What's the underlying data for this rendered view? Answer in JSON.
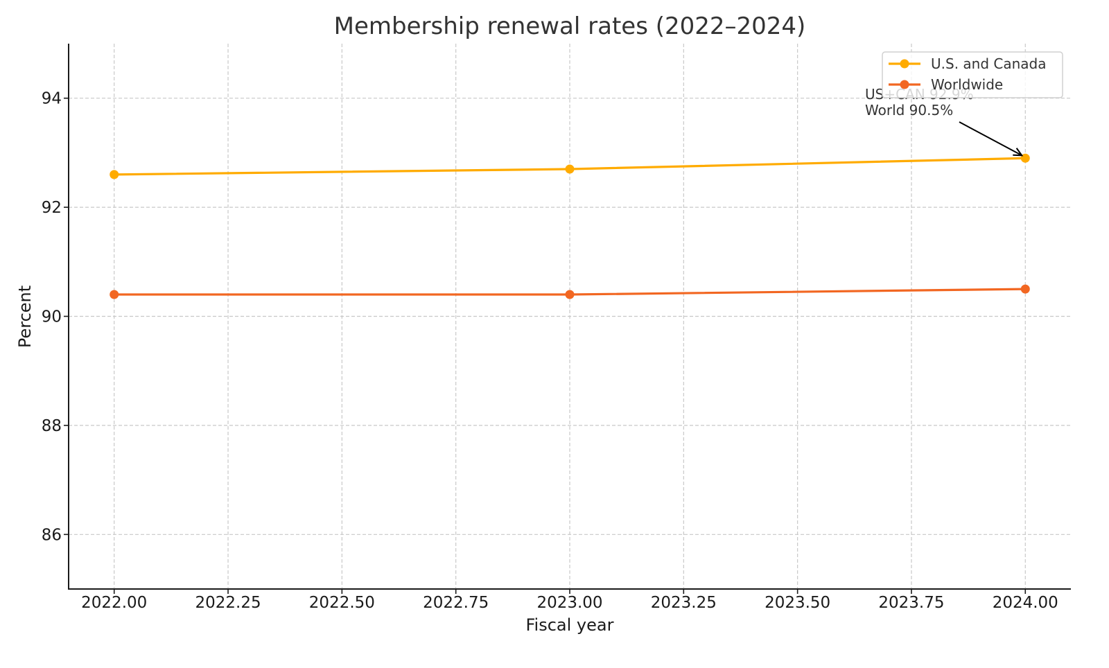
{
  "chart_data": {
    "type": "line",
    "title": "Membership renewal rates (2022–2024)",
    "xlabel": "Fiscal year",
    "ylabel": "Percent",
    "x": [
      2022,
      2023,
      2024
    ],
    "series": [
      {
        "name": "U.S. and Canada",
        "values": [
          92.6,
          92.7,
          92.9
        ],
        "color": "#FFAB00"
      },
      {
        "name": "Worldwide",
        "values": [
          90.4,
          90.4,
          90.5
        ],
        "color": "#F26722"
      }
    ],
    "xlim": [
      2021.9,
      2024.1
    ],
    "ylim": [
      85.0,
      95.0
    ],
    "x_ticks": [
      2022.0,
      2022.25,
      2022.5,
      2022.75,
      2023.0,
      2023.25,
      2023.5,
      2023.75,
      2024.0
    ],
    "x_tick_labels": [
      "2022.00",
      "2022.25",
      "2022.50",
      "2022.75",
      "2023.00",
      "2023.25",
      "2023.50",
      "2023.75",
      "2024.00"
    ],
    "y_ticks": [
      86,
      88,
      90,
      92,
      94
    ],
    "y_tick_labels": [
      "86",
      "88",
      "90",
      "92",
      "94"
    ],
    "grid": true,
    "legend_position": "upper right",
    "annotations": [
      {
        "text_lines": [
          "US+CAN 92.9%",
          "World 90.5%"
        ],
        "xy": [
          2024,
          92.9
        ],
        "arrow": true
      }
    ]
  },
  "colors": {
    "axis": "#1a1a1a",
    "grid": "#c8c8c8",
    "text": "#262626",
    "legend_border": "#d0d0d0"
  }
}
